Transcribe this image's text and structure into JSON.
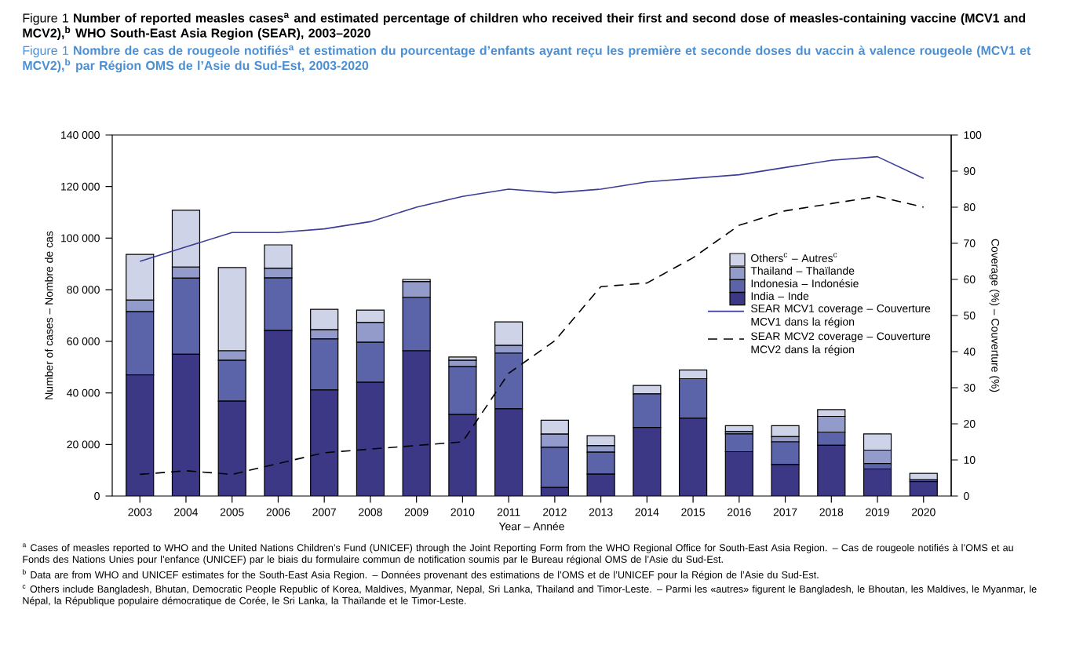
{
  "chart_data": {
    "type": "bar",
    "title": "Figure 1 **Number of reported measles cases$^{a}$ and estimated percentage of children who received their first and second dose of measles-containing vaccine (MCV1 and MCV2),$^{b}$ WHO South-East Asia Region (SEAR), 2003–2020**",
    "subtitle": "Figure 1 **Nombre de cas de rougeole notifiés$^{a}$ et estimation du pourcentage d’enfants ayant reçu les première et seconde doses du vaccin à valence rougeole (MCV1 et MCV2),$^{b}$ par Région OMS de l’Asie du Sud-Est, 2003-2020**",
    "xlabel": "Year – Année",
    "ylabel": "Number of cases – Nombre de cas",
    "y2label": "Coverage (%) – Couverture (%)",
    "categories": [
      "2003",
      "2004",
      "2005",
      "2006",
      "2007",
      "2008",
      "2009",
      "2010",
      "2011",
      "2012",
      "2013",
      "2014",
      "2015",
      "2016",
      "2017",
      "2018",
      "2019",
      "2020"
    ],
    "stacked": true,
    "series": [
      {
        "name": "India – Inde",
        "color": "#3c3886",
        "values": [
          47000,
          55000,
          36800,
          64200,
          41100,
          44100,
          56300,
          31600,
          33800,
          3300,
          8500,
          26600,
          30200,
          17200,
          12200,
          19700,
          10500,
          5600
        ]
      },
      {
        "name": "Indonesia – Indonésie",
        "color": "#5b64a8",
        "values": [
          24500,
          29500,
          15800,
          20400,
          19800,
          15500,
          20700,
          18600,
          21600,
          15600,
          8500,
          13000,
          15300,
          6900,
          8800,
          5100,
          2100,
          700
        ]
      },
      {
        "name": "Thailand – Thaïlande",
        "color": "#939bcb",
        "values": [
          4500,
          4300,
          3700,
          3700,
          3600,
          7700,
          6100,
          2400,
          3000,
          5100,
          2500,
          0,
          0,
          900,
          2000,
          6100,
          5200,
          0
        ]
      },
      {
        "name": "Others$^{c}$ – Autres$^{c}$",
        "color": "#cfd3e8",
        "values": [
          17700,
          22000,
          32300,
          9100,
          7900,
          4800,
          900,
          1300,
          9100,
          5400,
          3900,
          3300,
          3400,
          2300,
          4300,
          2600,
          6300,
          2500
        ]
      },
      {
        "name": "SEAR MCV1 coverage – Couverture MCV1 dans la région",
        "type": "line",
        "axis": "y2",
        "color": "#3c3c96",
        "line_style": "solid",
        "values": [
          65,
          69,
          73,
          73,
          74,
          76,
          80,
          83,
          85,
          84,
          85,
          87,
          88,
          89,
          91,
          93,
          94,
          88
        ]
      },
      {
        "name": "SEAR MCV2 coverage – Couverture MCV2 dans la région",
        "type": "line",
        "axis": "y2",
        "color": "#000000",
        "line_style": "dashed",
        "values": [
          6,
          7,
          6,
          9,
          12,
          13,
          14,
          15,
          34,
          43,
          58,
          59,
          66,
          75,
          79,
          81,
          83,
          80
        ]
      }
    ],
    "ylim": [
      0,
      140000
    ],
    "yticks": [
      0,
      {
        "value": 20000,
        "label": "20 000"
      },
      {
        "value": 40000,
        "label": "40 000"
      },
      {
        "value": 60000,
        "label": "60 000"
      },
      {
        "value": 80000,
        "label": "80 000"
      },
      {
        "value": 100000,
        "label": "100 000"
      },
      {
        "value": 120000,
        "label": "120 000"
      },
      {
        "value": 140000,
        "label": "140 000"
      }
    ],
    "y2lim": [
      0,
      100
    ],
    "y2ticks": [
      0,
      10,
      20,
      30,
      40,
      50,
      60,
      70,
      80,
      90,
      100
    ],
    "legend": "right",
    "annotations": [
      "$^{a}$ Cases of measles reported to WHO and the United Nations Children’s Fund (UNICEF) through the Joint Reporting Form from the WHO Regional Office for South-East Asia Region. – Cas de rougeole notifiés à l’OMS et au Fonds des Nations Unies pour l’enfance (UNICEF) par le biais du formulaire commun de notification soumis par le Bureau régional OMS de l’Asie du Sud-Est.",
      "$^{b}$ Data are from WHO and UNICEF estimates for the South-East Asia Region. – Données provenant des estimations de l’OMS et de l’UNICEF pour la Région de l’Asie du Sud-Est.",
      "$^{c}$ Others include Bangladesh, Bhutan, Democratic People Republic of Korea, Maldives, Myanmar, Nepal, Sri Lanka, Thailand and Timor-Leste. – Parmi les «autres» figurent le Bangladesh, le Bhoutan, les Maldives, le Myanmar, le Népal, la République populaire démocratique de Corée, le Sri Lanka, la Thaïlande et le Timor-Leste."
    ]
  }
}
